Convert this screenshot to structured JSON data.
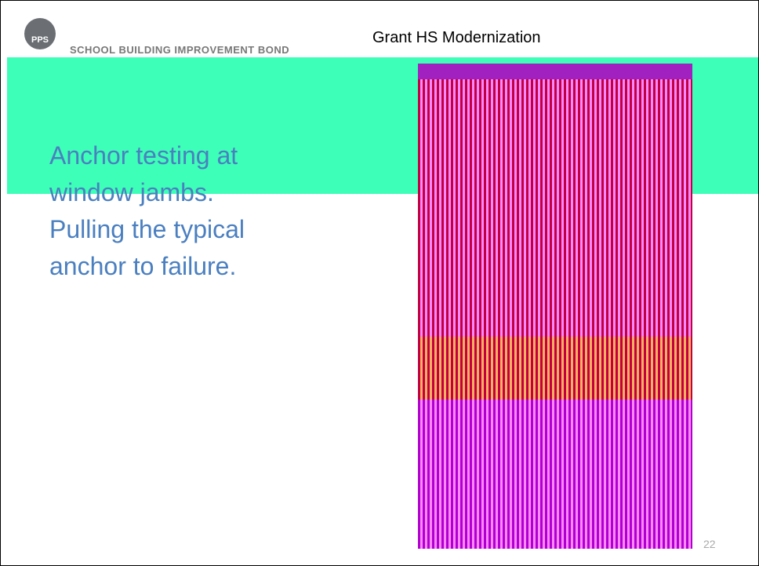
{
  "header": {
    "logo_text": "PPS",
    "banner": "SCHOOL BUILDING IMPROVEMENT BOND",
    "title": "Grant HS Modernization"
  },
  "body": {
    "lines": [
      "Anchor testing at",
      "window jambs.",
      "Pulling the typical",
      "anchor to failure."
    ]
  },
  "footer": {
    "page_number": "22"
  }
}
